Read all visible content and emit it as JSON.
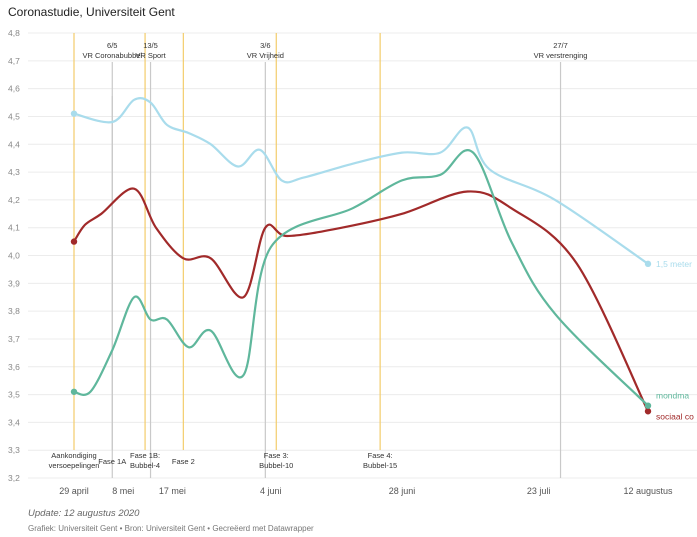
{
  "title": "Coronastudie, Universiteit Gent",
  "footer": {
    "update": "Update: 12 augustus 2020",
    "source": "Grafiek: Universiteit Gent • Bron: Universiteit Gent • Gecreëerd met Datawrapper"
  },
  "colors": {
    "afstand": "#a9dcec",
    "handen": "#a12a2a",
    "mondmasker": "#5fb79c",
    "yellow_marker": "#f3cc6b",
    "gray_marker": "#c9c9c9",
    "grid": "#ececec"
  },
  "chart_data": {
    "type": "line",
    "title": "Coronastudie, Universiteit Gent",
    "ylim": [
      3.2,
      4.8
    ],
    "y_ticks": [
      "4,8",
      "4,7",
      "4,6",
      "4,5",
      "4,4",
      "4,3",
      "4,2",
      "4,1",
      "4,0",
      "3,9",
      "3,8",
      "3,7",
      "3,6",
      "3,5",
      "3,4",
      "3,3",
      "3,2"
    ],
    "xlim": [
      "2020-04-29",
      "2020-08-12"
    ],
    "x_ticks": [
      {
        "date": "2020-04-29",
        "label": "29 april"
      },
      {
        "date": "2020-05-08",
        "label": "8 mei"
      },
      {
        "date": "2020-05-17",
        "label": "17 mei"
      },
      {
        "date": "2020-06-04",
        "label": "4 juni"
      },
      {
        "date": "2020-06-28",
        "label": "28 juni"
      },
      {
        "date": "2020-07-23",
        "label": "23 juli"
      },
      {
        "date": "2020-08-12",
        "label": "12 augustus"
      }
    ],
    "series": [
      {
        "name": "1,5 meter",
        "color_key": "afstand",
        "points": [
          {
            "date": "2020-04-29",
            "value": 4.51
          },
          {
            "date": "2020-05-06",
            "value": 4.48
          },
          {
            "date": "2020-05-10",
            "value": 4.56
          },
          {
            "date": "2020-05-13",
            "value": 4.55
          },
          {
            "date": "2020-05-16",
            "value": 4.47
          },
          {
            "date": "2020-05-20",
            "value": 4.44
          },
          {
            "date": "2020-05-24",
            "value": 4.4
          },
          {
            "date": "2020-05-29",
            "value": 4.32
          },
          {
            "date": "2020-06-02",
            "value": 4.38
          },
          {
            "date": "2020-06-06",
            "value": 4.27
          },
          {
            "date": "2020-06-10",
            "value": 4.28
          },
          {
            "date": "2020-06-19",
            "value": 4.33
          },
          {
            "date": "2020-06-28",
            "value": 4.37
          },
          {
            "date": "2020-07-05",
            "value": 4.37
          },
          {
            "date": "2020-07-10",
            "value": 4.46
          },
          {
            "date": "2020-07-14",
            "value": 4.31
          },
          {
            "date": "2020-07-26",
            "value": 4.2
          },
          {
            "date": "2020-08-12",
            "value": 3.97
          }
        ]
      },
      {
        "name": "sociaal contact",
        "label": "sociaal co",
        "color_key": "handen",
        "points": [
          {
            "date": "2020-04-29",
            "value": 4.05
          },
          {
            "date": "2020-05-01",
            "value": 4.11
          },
          {
            "date": "2020-05-04",
            "value": 4.15
          },
          {
            "date": "2020-05-10",
            "value": 4.24
          },
          {
            "date": "2020-05-14",
            "value": 4.1
          },
          {
            "date": "2020-05-19",
            "value": 3.99
          },
          {
            "date": "2020-05-24",
            "value": 3.99
          },
          {
            "date": "2020-05-30",
            "value": 3.85
          },
          {
            "date": "2020-06-03",
            "value": 4.1
          },
          {
            "date": "2020-06-07",
            "value": 4.07
          },
          {
            "date": "2020-06-17",
            "value": 4.1
          },
          {
            "date": "2020-06-28",
            "value": 4.15
          },
          {
            "date": "2020-07-10",
            "value": 4.23
          },
          {
            "date": "2020-07-18",
            "value": 4.17
          },
          {
            "date": "2020-07-30",
            "value": 3.97
          },
          {
            "date": "2020-08-12",
            "value": 3.44
          }
        ]
      },
      {
        "name": "mondmasker",
        "label": "mondma",
        "color_key": "mondmasker",
        "points": [
          {
            "date": "2020-04-29",
            "value": 3.51
          },
          {
            "date": "2020-05-02",
            "value": 3.51
          },
          {
            "date": "2020-05-06",
            "value": 3.66
          },
          {
            "date": "2020-05-10",
            "value": 3.85
          },
          {
            "date": "2020-05-13",
            "value": 3.77
          },
          {
            "date": "2020-05-16",
            "value": 3.77
          },
          {
            "date": "2020-05-20",
            "value": 3.67
          },
          {
            "date": "2020-05-24",
            "value": 3.73
          },
          {
            "date": "2020-05-30",
            "value": 3.57
          },
          {
            "date": "2020-06-04",
            "value": 4.03
          },
          {
            "date": "2020-06-19",
            "value": 4.17
          },
          {
            "date": "2020-06-28",
            "value": 4.27
          },
          {
            "date": "2020-07-05",
            "value": 4.29
          },
          {
            "date": "2020-07-11",
            "value": 4.37
          },
          {
            "date": "2020-07-18",
            "value": 4.05
          },
          {
            "date": "2020-07-26",
            "value": 3.79
          },
          {
            "date": "2020-08-12",
            "value": 3.46
          }
        ]
      }
    ],
    "top_annotations": [
      {
        "date": "2020-05-06",
        "line1": "6/5",
        "line2": "VR Coronabubbel",
        "color_key": "gray_marker"
      },
      {
        "date": "2020-05-13",
        "line1": "13/5",
        "line2": "VR Sport",
        "color_key": "gray_marker"
      },
      {
        "date": "2020-06-03",
        "line1": "3/6",
        "line2": "VR Vrijheid",
        "color_key": "gray_marker"
      },
      {
        "date": "2020-07-27",
        "line1": "27/7",
        "line2": "VR verstrenging",
        "color_key": "gray_marker"
      }
    ],
    "bottom_annotations": [
      {
        "date": "2020-04-29",
        "line1": "Aankondiging",
        "line2": "versoepelingen",
        "color_key": "yellow_marker"
      },
      {
        "date": "2020-05-06",
        "line1": "Fase 1A",
        "line2": "",
        "color_key": "gray_marker"
      },
      {
        "date": "2020-05-12",
        "line1": "Fase 1B:",
        "line2": "Bubbel-4",
        "color_key": "yellow_marker"
      },
      {
        "date": "2020-05-19",
        "line1": "Fase 2",
        "line2": "",
        "color_key": "yellow_marker"
      },
      {
        "date": "2020-06-05",
        "line1": "Fase 3:",
        "line2": "Bubbel-10",
        "color_key": "yellow_marker"
      },
      {
        "date": "2020-06-24",
        "line1": "Fase 4:",
        "line2": "Bubbel-15",
        "color_key": "yellow_marker"
      }
    ]
  }
}
